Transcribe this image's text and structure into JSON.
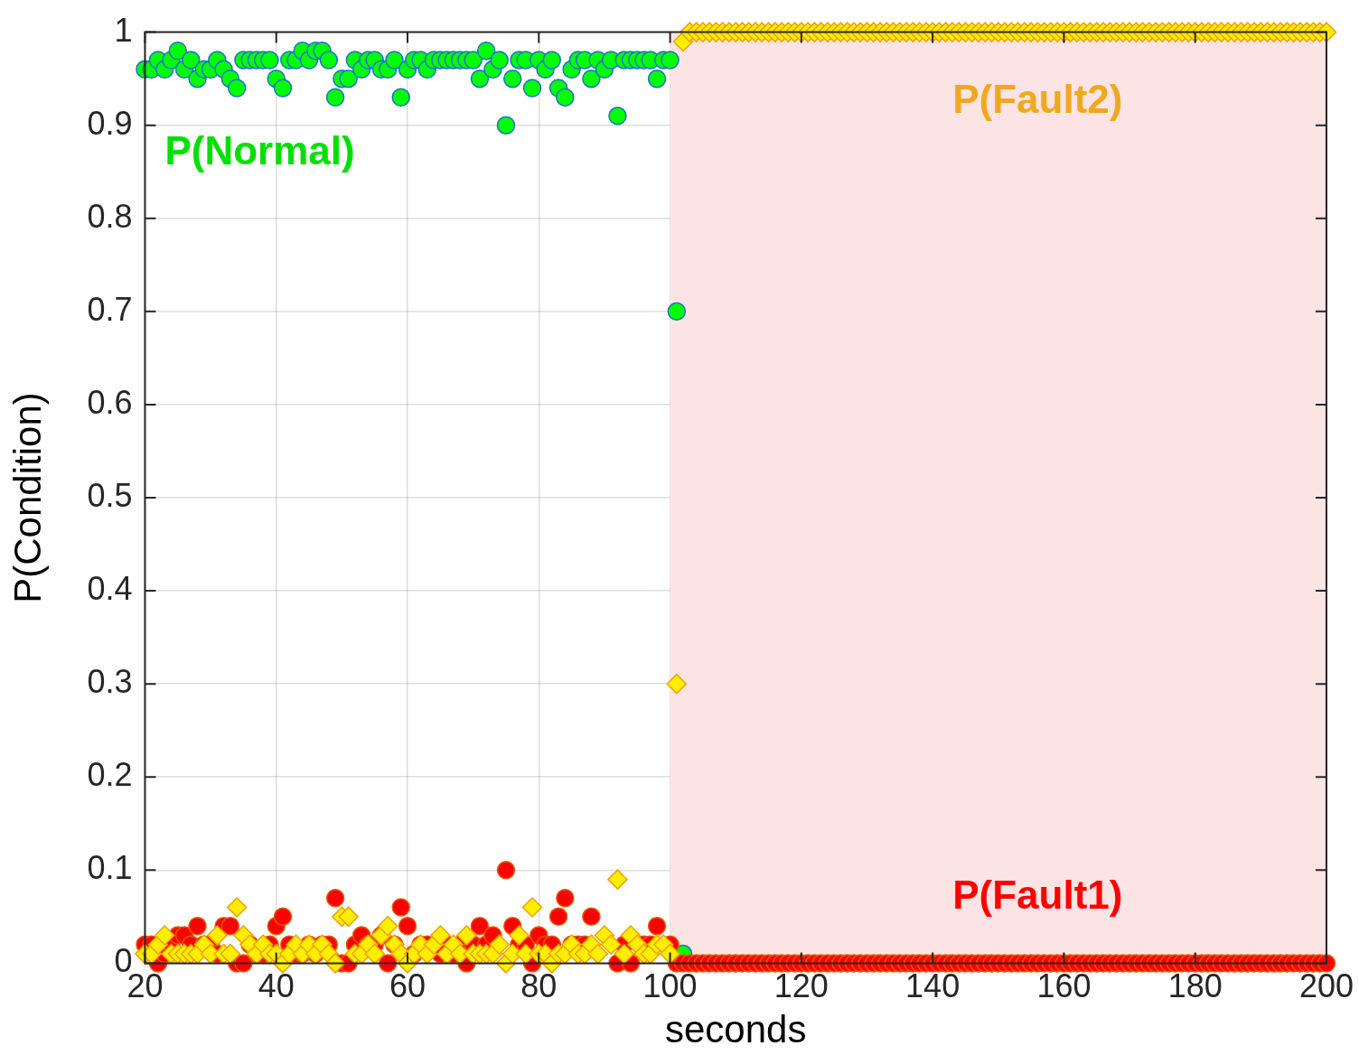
{
  "chart_data": {
    "type": "scatter",
    "xlabel": "seconds",
    "ylabel": "P(Condition)",
    "x": [
      20,
      21,
      22,
      23,
      24,
      25,
      26,
      27,
      28,
      29,
      30,
      31,
      32,
      33,
      34,
      35,
      36,
      37,
      38,
      39,
      40,
      41,
      42,
      43,
      44,
      45,
      46,
      47,
      48,
      49,
      50,
      51,
      52,
      53,
      54,
      55,
      56,
      57,
      58,
      59,
      60,
      61,
      62,
      63,
      64,
      65,
      66,
      67,
      68,
      69,
      70,
      71,
      72,
      73,
      74,
      75,
      76,
      77,
      78,
      79,
      80,
      81,
      82,
      83,
      84,
      85,
      86,
      87,
      88,
      89,
      90,
      91,
      92,
      93,
      94,
      95,
      96,
      97,
      98,
      99,
      100,
      101,
      102,
      103,
      104,
      105,
      106,
      107,
      108,
      109,
      110,
      111,
      112,
      113,
      114,
      115,
      116,
      117,
      118,
      119,
      120,
      121,
      122,
      123,
      124,
      125,
      126,
      127,
      128,
      129,
      130,
      131,
      132,
      133,
      134,
      135,
      136,
      137,
      138,
      139,
      140,
      141,
      142,
      143,
      144,
      145,
      146,
      147,
      148,
      149,
      150,
      151,
      152,
      153,
      154,
      155,
      156,
      157,
      158,
      159,
      160,
      161,
      162,
      163,
      164,
      165,
      166,
      167,
      168,
      169,
      170,
      171,
      172,
      173,
      174,
      175,
      176,
      177,
      178,
      179,
      180,
      181,
      182,
      183,
      184,
      185,
      186,
      187,
      188,
      189,
      190,
      191,
      192,
      193,
      194,
      195,
      196,
      197,
      198,
      199,
      200
    ],
    "series": [
      {
        "name": "P(Normal)",
        "color": "#00ff00",
        "marker": "circle",
        "values": [
          0.96,
          0.96,
          0.97,
          0.96,
          0.97,
          0.98,
          0.96,
          0.97,
          0.95,
          0.96,
          0.96,
          0.97,
          0.96,
          0.95,
          0.94,
          0.97,
          0.97,
          0.97,
          0.97,
          0.97,
          0.95,
          0.94,
          0.97,
          0.97,
          0.98,
          0.97,
          0.98,
          0.98,
          0.97,
          0.93,
          0.95,
          0.95,
          0.97,
          0.96,
          0.97,
          0.97,
          0.96,
          0.96,
          0.97,
          0.93,
          0.96,
          0.97,
          0.97,
          0.96,
          0.97,
          0.97,
          0.97,
          0.97,
          0.97,
          0.97,
          0.97,
          0.95,
          0.98,
          0.96,
          0.97,
          0.9,
          0.95,
          0.97,
          0.97,
          0.94,
          0.97,
          0.96,
          0.97,
          0.94,
          0.93,
          0.96,
          0.97,
          0.97,
          0.95,
          0.97,
          0.96,
          0.97,
          0.91,
          0.97,
          0.97,
          0.97,
          0.97,
          0.97,
          0.95,
          0.97,
          0.97,
          0.7,
          0.01,
          null,
          null,
          null,
          null,
          null,
          null,
          null,
          null,
          null,
          null,
          null,
          null,
          null,
          null,
          null,
          null,
          null,
          null,
          null,
          null,
          null,
          null,
          null,
          null,
          null,
          null,
          null,
          null,
          null,
          null,
          null,
          null,
          null,
          null,
          null,
          null,
          null,
          null,
          null,
          null,
          null,
          null,
          null,
          null,
          null,
          null,
          null,
          null,
          null,
          null,
          null,
          null,
          null,
          null,
          null,
          null,
          null,
          null,
          null,
          null,
          null,
          null,
          null,
          null,
          null,
          null,
          null,
          null,
          null,
          null,
          null,
          null,
          null,
          null,
          null,
          null,
          null,
          null,
          null,
          null,
          null,
          null,
          null,
          null,
          null,
          null,
          null,
          null,
          null,
          null,
          null,
          null,
          null,
          null,
          null,
          null,
          null,
          null
        ]
      },
      {
        "name": "P(Fault1)",
        "color": "#ff0000",
        "marker": "circle",
        "values": [
          0.02,
          0.02,
          0,
          0.01,
          0.02,
          0.03,
          0.03,
          0.02,
          0.04,
          0.02,
          0.02,
          0.01,
          0.04,
          0.04,
          0,
          0,
          0.02,
          0.01,
          0.01,
          0.02,
          0.04,
          0.05,
          0.02,
          0.01,
          0.01,
          0.02,
          0.01,
          0.02,
          0.02,
          0.07,
          0,
          0,
          0.02,
          0.03,
          0.02,
          0.02,
          0.03,
          0,
          0.02,
          0.06,
          0.04,
          0.01,
          0.02,
          0.02,
          null,
          0.01,
          0.02,
          0.01,
          0.02,
          0,
          0.02,
          0.04,
          0.02,
          0.03,
          null,
          0.1,
          0.04,
          0.02,
          0.02,
          0,
          0.03,
          0.02,
          0.02,
          0.05,
          0.07,
          0.02,
          0.02,
          0.02,
          0.05,
          null,
          null,
          null,
          0,
          0.02,
          0,
          null,
          0.02,
          0.02,
          0.04,
          null,
          0.02,
          0,
          0,
          0,
          0,
          0,
          0,
          0,
          0,
          0,
          0,
          0,
          0,
          0,
          0,
          0,
          0,
          0,
          0,
          0,
          0,
          0,
          0,
          0,
          0,
          0,
          0,
          0,
          0,
          0,
          0,
          0,
          0,
          0,
          0,
          0,
          0,
          0,
          0,
          0,
          0,
          0,
          0,
          0,
          0,
          0,
          0,
          0,
          0,
          0,
          0,
          0,
          0,
          0,
          0,
          0,
          0,
          0,
          0,
          0,
          0,
          0,
          0,
          0,
          0,
          0,
          0,
          0,
          0,
          0,
          0,
          0,
          0,
          0,
          0,
          0,
          0,
          0,
          0,
          0,
          0,
          0,
          0,
          0,
          0,
          0,
          0,
          0,
          0,
          0,
          0,
          0,
          0,
          0,
          0,
          0,
          0,
          0,
          0,
          0,
          0
        ]
      },
      {
        "name": "P(Fault2)",
        "color": "#ffee00",
        "marker": "diamond",
        "values": [
          0.01,
          0.01,
          0.02,
          0.03,
          0.01,
          0.01,
          0.01,
          0.01,
          0.01,
          0.02,
          0.01,
          0.03,
          0.01,
          0.01,
          0.06,
          0.03,
          0.02,
          0.01,
          0.02,
          0.01,
          0.01,
          0,
          0.01,
          0.02,
          0.01,
          0.02,
          0.01,
          0.02,
          0.01,
          0,
          0.05,
          0.05,
          0.01,
          0.01,
          0.02,
          0.01,
          0.03,
          0.04,
          0.02,
          0.01,
          0,
          0.01,
          0.02,
          0.01,
          0.02,
          0.03,
          0.01,
          0.02,
          0.01,
          0.03,
          0.01,
          0.01,
          0.01,
          0.01,
          0.02,
          0,
          0.01,
          0.03,
          0.01,
          0.06,
          0.01,
          0.01,
          0,
          0.01,
          0.01,
          0.02,
          0.01,
          0.01,
          0.02,
          0.01,
          0.03,
          0.02,
          0.09,
          0.01,
          0.03,
          0.02,
          0.01,
          0.01,
          0.02,
          0.02,
          0.01,
          0.3,
          0.99,
          1,
          1,
          1,
          1,
          1,
          1,
          1,
          1,
          1,
          1,
          1,
          1,
          1,
          1,
          1,
          1,
          1,
          1,
          1,
          1,
          1,
          1,
          1,
          1,
          1,
          1,
          1,
          1,
          1,
          1,
          1,
          1,
          1,
          1,
          1,
          1,
          1,
          1,
          1,
          1,
          1,
          1,
          1,
          1,
          1,
          1,
          1,
          1,
          1,
          1,
          1,
          1,
          1,
          1,
          1,
          1,
          1,
          1,
          1,
          1,
          1,
          1,
          1,
          1,
          1,
          1,
          1,
          1,
          1,
          1,
          1,
          1,
          1,
          1,
          1,
          1,
          1,
          1,
          1,
          1,
          1,
          1,
          1,
          1,
          1,
          1,
          1,
          1,
          1,
          1,
          1,
          1,
          1,
          1,
          1,
          1,
          1,
          1
        ]
      }
    ],
    "bands": [
      {
        "axis": "x",
        "from": 100,
        "to": 200,
        "color": "#fde4e4"
      }
    ],
    "xlim": [
      20,
      200
    ],
    "xticks": [
      20,
      40,
      60,
      80,
      100,
      120,
      140,
      160,
      180,
      200
    ],
    "ylim": [
      0,
      1
    ],
    "yticks": [
      0,
      0.1,
      0.2,
      0.3,
      0.4,
      0.5,
      0.6,
      0.7,
      0.8,
      0.9,
      1
    ],
    "grid": true,
    "legend": false
  }
}
